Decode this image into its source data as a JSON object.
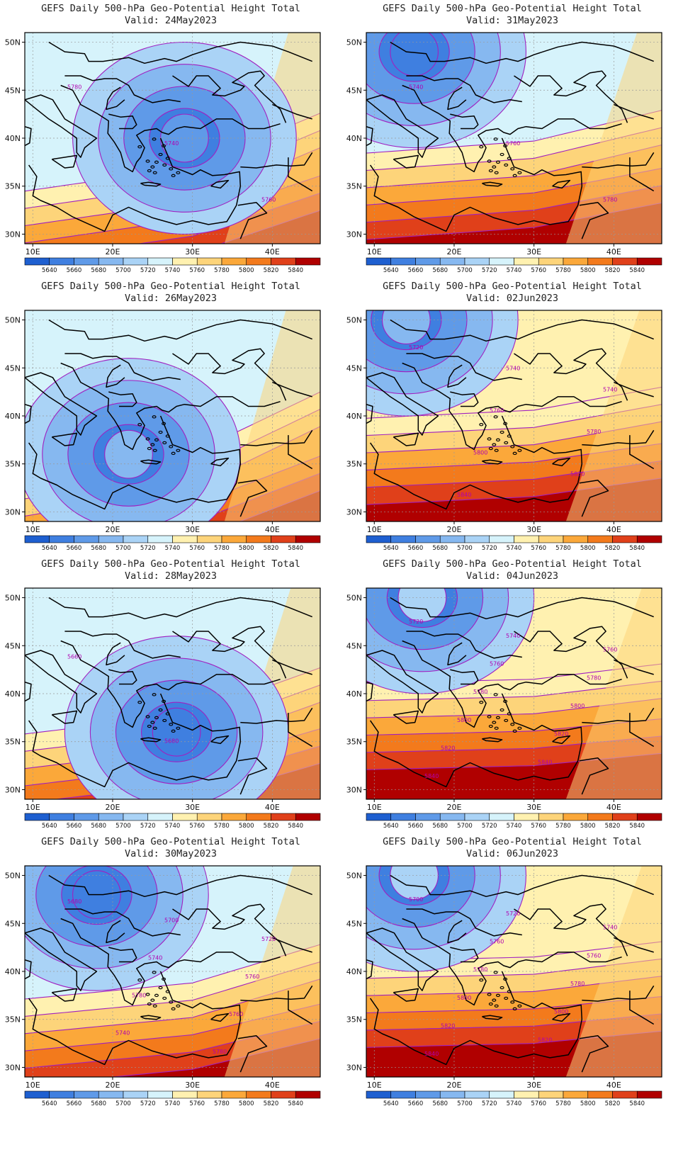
{
  "panels": [
    {
      "title": "GEFS Daily 500-hPa Geo-Potential Height Total",
      "valid": "Valid: 24May2023",
      "contour_labels": [
        "5780",
        "5740",
        "5760"
      ],
      "low_center": [
        29,
        40
      ],
      "low_level": 3,
      "high_shift": 0
    },
    {
      "title": "GEFS Daily 500-hPa Geo-Potential Height Total",
      "valid": "Valid: 31May2023",
      "contour_labels": [
        "5740",
        "5760",
        "5780"
      ],
      "low_center": [
        15,
        49
      ],
      "low_level": 2,
      "high_shift": 3
    },
    {
      "title": "GEFS Daily 500-hPa Geo-Potential Height Total",
      "valid": "Valid: 26May2023",
      "contour_labels": [],
      "low_center": [
        22,
        36
      ],
      "low_level": 4,
      "high_shift": -1
    },
    {
      "title": "GEFS Daily 500-hPa Geo-Potential Height Total",
      "valid": "Valid: 02Jun2023",
      "contour_labels": [
        "5720",
        "5740",
        "5740",
        "5760",
        "5780",
        "5800",
        "5820",
        "5840"
      ],
      "low_center": [
        14,
        50
      ],
      "low_level": 4,
      "high_shift": 4
    },
    {
      "title": "GEFS Daily 500-hPa Geo-Potential Height Total",
      "valid": "Valid: 28May2023",
      "contour_labels": [
        "5660",
        "5680"
      ],
      "low_center": [
        28,
        36
      ],
      "low_level": 2,
      "high_shift": 1
    },
    {
      "title": "GEFS Daily 500-hPa Geo-Potential Height Total",
      "valid": "Valid: 04Jun2023",
      "contour_labels": [
        "5720",
        "5740",
        "5760",
        "5760",
        "5780",
        "5780",
        "5800",
        "5800",
        "5820",
        "5820",
        "5840",
        "5840"
      ],
      "low_center": [
        16,
        50
      ],
      "low_level": 5,
      "high_shift": 5
    },
    {
      "title": "GEFS Daily 500-hPa Geo-Potential Height Total",
      "valid": "Valid: 30May2023",
      "contour_labels": [
        "5680",
        "5700",
        "5720",
        "5740",
        "5760",
        "5780",
        "5760",
        "5740",
        "5780"
      ],
      "low_center": [
        18,
        48
      ],
      "low_level": 2,
      "high_shift": 2
    },
    {
      "title": "GEFS Daily 500-hPa Geo-Potential Height Total",
      "valid": "Valid: 06Jun2023",
      "contour_labels": [
        "5700",
        "5720",
        "5740",
        "5760",
        "5760",
        "5780",
        "5780",
        "5800",
        "5800",
        "5820",
        "5820",
        "5840"
      ],
      "low_center": [
        15,
        50
      ],
      "low_level": 5,
      "high_shift": 5
    }
  ],
  "axes": {
    "lon_ticks": [
      "10E",
      "20E",
      "30E",
      "40E"
    ],
    "lon_values": [
      10,
      20,
      30,
      40
    ],
    "lat_ticks": [
      "50N",
      "45N",
      "40N",
      "35N",
      "30N"
    ],
    "lat_values": [
      50,
      45,
      40,
      35,
      30
    ],
    "lon_range": [
      9,
      46
    ],
    "lat_range": [
      29,
      51
    ]
  },
  "colorbar": {
    "labels": [
      "5640",
      "5660",
      "5680",
      "5700",
      "5720",
      "5740",
      "5760",
      "5780",
      "5800",
      "5820",
      "5840"
    ],
    "colors": [
      "#1e5fd0",
      "#3f7fe0",
      "#5f9ae8",
      "#86b8f0",
      "#aad3f6",
      "#d6f3fb",
      "#fff1b0",
      "#fdd47a",
      "#fba83a",
      "#f37a1c",
      "#e0401a",
      "#b00000"
    ]
  },
  "colors": {
    "contour": "#a020c0",
    "boundary": "#000000",
    "grid": "#999999"
  }
}
